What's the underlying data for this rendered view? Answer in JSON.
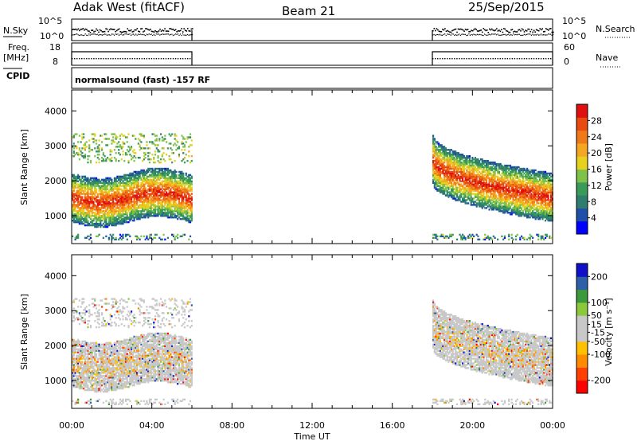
{
  "header": {
    "station": "Adak West (fitACF)",
    "beam": "Beam 21",
    "date": "25/Sep/2015"
  },
  "top_panels": {
    "nsky_label": "N.Sky",
    "nsky_ticks": [
      "10^5",
      "10^0"
    ],
    "nsearch_label": "N.Search",
    "nsearch_ticks": [
      "10^5",
      "10^0"
    ],
    "freq_label_1": "Freq.",
    "freq_label_2": "[MHz]",
    "freq_ticks": [
      "18",
      "8"
    ],
    "nave_label": "Nave",
    "nave_ticks": [
      "60",
      "0"
    ],
    "cpid_label": "CPID",
    "cpid_text": "normalsound (fast) -157 RF"
  },
  "colors": {
    "power_scale": [
      "#0000ff",
      "#1f4fa8",
      "#2e7d6e",
      "#3a9a5a",
      "#7fc24a",
      "#e6d21e",
      "#f5a623",
      "#f07a1a",
      "#e84a10",
      "#e01010"
    ],
    "velocity_scale": [
      "#ff0000",
      "#ff4000",
      "#ff8c00",
      "#ffc000",
      "#c8c8c8",
      "#c8c8c8",
      "#8cc83c",
      "#3c9a3c",
      "#2e5fa8",
      "#1010c8"
    ]
  },
  "chart_data": [
    {
      "type": "heatmap",
      "panel": "power",
      "ylabel": "Slant Range [km]",
      "xlabel": "Time UT",
      "x_ticks": [
        "00:00",
        "04:00",
        "08:00",
        "12:00",
        "16:00",
        "20:00",
        "00:00"
      ],
      "y_ticks": [
        "1000",
        "2000",
        "3000",
        "4000"
      ],
      "ylim": [
        200,
        4600
      ],
      "xlim": [
        0,
        24
      ],
      "colorbar_label": "Power [dB]",
      "colorbar_ticks": [
        "28",
        "24",
        "20",
        "16",
        "12",
        "8",
        "4"
      ],
      "colorbar_range": [
        0,
        32
      ],
      "data_windows_hours": [
        [
          0,
          6
        ],
        [
          18,
          24
        ]
      ],
      "echo_bands": [
        {
          "t0": 0,
          "t1": 6,
          "r_lo": 1150,
          "r_hi": 2300,
          "peak_db": 28
        },
        {
          "t0": 18,
          "t1": 24,
          "r_lo": 900,
          "r_hi": 3000,
          "peak_db": 26
        }
      ]
    },
    {
      "type": "heatmap",
      "panel": "velocity",
      "ylabel": "Slant Range [km]",
      "xlabel": "Time UT",
      "x_ticks": [
        "00:00",
        "04:00",
        "08:00",
        "12:00",
        "16:00",
        "20:00",
        "00:00"
      ],
      "y_ticks": [
        "1000",
        "2000",
        "3000",
        "4000"
      ],
      "ylim": [
        200,
        4600
      ],
      "xlim": [
        0,
        24
      ],
      "colorbar_label": "Velocity [m s⁻¹]",
      "colorbar_ticks": [
        "200",
        "100",
        "50",
        "15",
        "-15",
        "-50",
        "-100",
        "-200"
      ],
      "colorbar_range": [
        -250,
        250
      ],
      "data_windows_hours": [
        [
          0,
          6
        ],
        [
          18,
          24
        ]
      ]
    }
  ]
}
